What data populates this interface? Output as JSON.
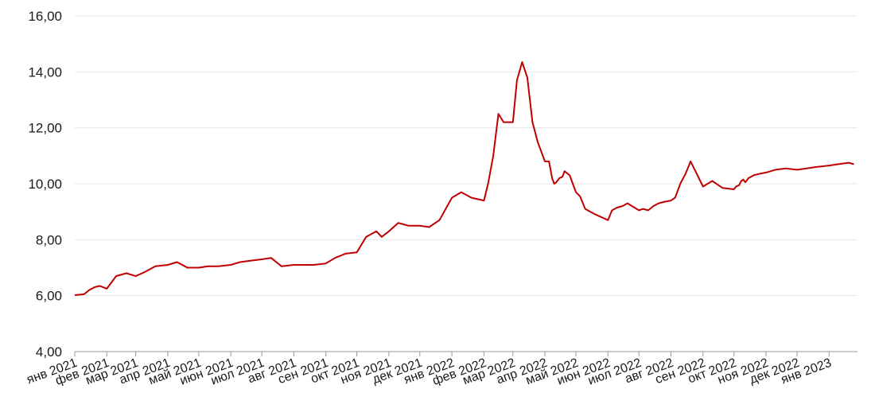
{
  "chart_data": {
    "type": "line",
    "title": "",
    "xlabel": "",
    "ylabel": "",
    "ylim": [
      4,
      16
    ],
    "y_ticks": [
      "4,00",
      "6,00",
      "8,00",
      "10,00",
      "12,00",
      "14,00",
      "16,00"
    ],
    "x_tick_labels": [
      "янв 2021",
      "фев 2021",
      "мар 2021",
      "апр 2021",
      "май 2021",
      "июн 2021",
      "июл 2021",
      "авг 2021",
      "сен 2021",
      "окт 2021",
      "ноя 2021",
      "дек 2021",
      "янв 2022",
      "фев 2022",
      "мар 2022",
      "апр 2022",
      "май 2022",
      "июн 2022",
      "июл 2022",
      "авг 2022",
      "сен 2022",
      "окт 2022",
      "ноя 2022",
      "дек 2022",
      "янв 2023"
    ],
    "grid": true,
    "legend": "none",
    "line_color": "#c00000",
    "series": [
      {
        "x": [
          "2021-01-01",
          "2021-01-10",
          "2021-01-15",
          "2021-01-20",
          "2021-01-25",
          "2021-02-01",
          "2021-02-10",
          "2021-02-20",
          "2021-03-01",
          "2021-03-10",
          "2021-03-20",
          "2021-04-01",
          "2021-04-10",
          "2021-04-20",
          "2021-05-01",
          "2021-05-10",
          "2021-05-20",
          "2021-06-01",
          "2021-06-10",
          "2021-06-20",
          "2021-07-01",
          "2021-07-10",
          "2021-07-20",
          "2021-08-01",
          "2021-08-10",
          "2021-08-20",
          "2021-09-01",
          "2021-09-10",
          "2021-09-20",
          "2021-10-01",
          "2021-10-10",
          "2021-10-20",
          "2021-10-25",
          "2021-11-01",
          "2021-11-10",
          "2021-11-20",
          "2021-12-01",
          "2021-12-10",
          "2021-12-20",
          "2022-01-01",
          "2022-01-10",
          "2022-01-20",
          "2022-02-01",
          "2022-02-05",
          "2022-02-10",
          "2022-02-15",
          "2022-02-20",
          "2022-02-25",
          "2022-03-01",
          "2022-03-05",
          "2022-03-10",
          "2022-03-15",
          "2022-03-20",
          "2022-03-25",
          "2022-04-01",
          "2022-04-05",
          "2022-04-08",
          "2022-04-10",
          "2022-04-12",
          "2022-04-15",
          "2022-04-18",
          "2022-04-20",
          "2022-04-25",
          "2022-05-01",
          "2022-05-05",
          "2022-05-10",
          "2022-05-15",
          "2022-05-20",
          "2022-06-01",
          "2022-06-05",
          "2022-06-10",
          "2022-06-15",
          "2022-06-20",
          "2022-07-01",
          "2022-07-05",
          "2022-07-10",
          "2022-07-15",
          "2022-07-20",
          "2022-07-25",
          "2022-08-01",
          "2022-08-05",
          "2022-08-10",
          "2022-08-15",
          "2022-08-20",
          "2022-09-01",
          "2022-09-10",
          "2022-09-20",
          "2022-10-01",
          "2022-10-03",
          "2022-10-06",
          "2022-10-08",
          "2022-10-10",
          "2022-10-12",
          "2022-10-15",
          "2022-10-20",
          "2022-10-25",
          "2022-11-01",
          "2022-11-10",
          "2022-11-20",
          "2022-12-01",
          "2022-12-10",
          "2022-12-20",
          "2023-01-01",
          "2023-01-10",
          "2023-01-20",
          "2023-01-25"
        ],
        "y": [
          6.02,
          6.05,
          6.2,
          6.3,
          6.35,
          6.25,
          6.7,
          6.8,
          6.7,
          6.85,
          7.05,
          7.1,
          7.2,
          7.0,
          7.0,
          7.05,
          7.05,
          7.1,
          7.2,
          7.25,
          7.3,
          7.35,
          7.05,
          7.1,
          7.1,
          7.1,
          7.15,
          7.35,
          7.5,
          7.55,
          8.1,
          8.3,
          8.1,
          8.3,
          8.6,
          8.5,
          8.5,
          8.45,
          8.7,
          9.5,
          9.7,
          9.5,
          9.4,
          10.0,
          11.0,
          12.5,
          12.2,
          12.2,
          12.2,
          13.7,
          14.35,
          13.8,
          12.2,
          11.5,
          10.8,
          10.8,
          10.2,
          10.0,
          10.05,
          10.2,
          10.25,
          10.45,
          10.3,
          9.7,
          9.55,
          9.1,
          9.0,
          8.9,
          8.7,
          9.05,
          9.15,
          9.2,
          9.3,
          9.05,
          9.1,
          9.05,
          9.2,
          9.3,
          9.35,
          9.4,
          9.5,
          10.0,
          10.35,
          10.8,
          9.9,
          10.1,
          9.85,
          9.8,
          9.9,
          9.95,
          10.1,
          10.15,
          10.05,
          10.2,
          10.3,
          10.35,
          10.4,
          10.5,
          10.55,
          10.5,
          10.55,
          10.6,
          10.65,
          10.7,
          10.75,
          10.7
        ]
      }
    ]
  }
}
